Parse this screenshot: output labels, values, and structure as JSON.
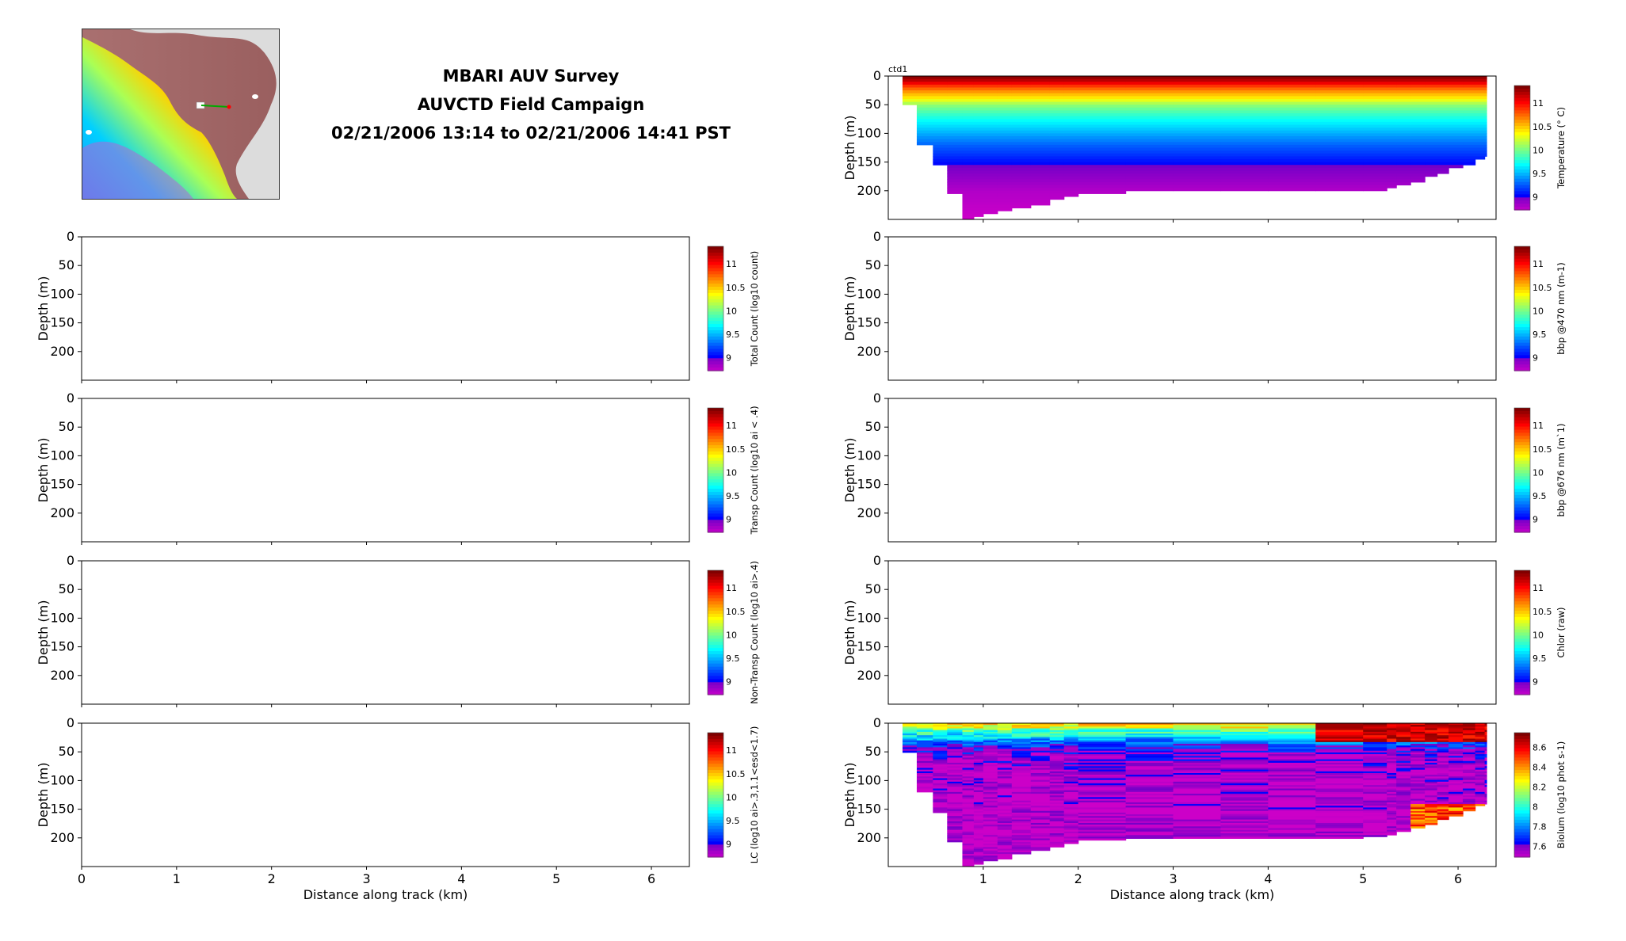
{
  "header": {
    "title_line1": "MBARI AUV Survey",
    "title_line2": "AUVCTD Field Campaign",
    "title_line3": "02/21/2006 13:14 to 02/21/2006 14:41 PST"
  },
  "map": {
    "description_icon": "location-map-icon"
  },
  "chart_data": [
    {
      "id": "total-count",
      "type": "heatmap",
      "column": "left",
      "row": 0,
      "ylabel": "Depth (m)",
      "yticks": [
        0,
        50,
        100,
        150,
        200
      ],
      "ylim": [
        250,
        0
      ],
      "xlim": [
        0,
        6.4
      ],
      "xticks": [
        0,
        1,
        2,
        3,
        4,
        5,
        6
      ],
      "xticklabels": [],
      "colorbar": {
        "label": "Total Count (log10 count)",
        "ticks": [
          "9",
          "9.5",
          "10",
          "10.5",
          "11"
        ],
        "cmap": "jet"
      },
      "data": "empty"
    },
    {
      "id": "transp-count",
      "type": "heatmap",
      "column": "left",
      "row": 1,
      "ylabel": "Depth (m)",
      "yticks": [
        0,
        50,
        100,
        150,
        200
      ],
      "ylim": [
        250,
        0
      ],
      "xlim": [
        0,
        6.4
      ],
      "xticks": [
        0,
        1,
        2,
        3,
        4,
        5,
        6
      ],
      "xticklabels": [],
      "colorbar": {
        "label": "Transp Count (log10 ai < .4)",
        "ticks": [
          "9",
          "9.5",
          "10",
          "10.5",
          "11"
        ],
        "cmap": "jet"
      },
      "data": "empty"
    },
    {
      "id": "nontransp-count",
      "type": "heatmap",
      "column": "left",
      "row": 2,
      "ylabel": "Depth (m)",
      "yticks": [
        0,
        50,
        100,
        150,
        200
      ],
      "ylim": [
        250,
        0
      ],
      "xlim": [
        0,
        6.4
      ],
      "xticks": [
        0,
        1,
        2,
        3,
        4,
        5,
        6
      ],
      "xticklabels": [],
      "colorbar": {
        "label": "Non-Transp Count (log10 ai>.4)",
        "ticks": [
          "9",
          "9.5",
          "10",
          "10.5",
          "11"
        ],
        "cmap": "jet"
      },
      "data": "empty"
    },
    {
      "id": "lc",
      "type": "heatmap",
      "column": "left",
      "row": 3,
      "ylabel": "Depth (m)",
      "yticks": [
        0,
        50,
        100,
        150,
        200
      ],
      "ylim": [
        250,
        0
      ],
      "xlim": [
        0,
        6.4
      ],
      "xticks": [
        0,
        1,
        2,
        3,
        4,
        5,
        6
      ],
      "xticklabels": [
        "0",
        "1",
        "2",
        "3",
        "4",
        "5",
        "6"
      ],
      "xlabel": "Distance along track (km)",
      "colorbar": {
        "label": "LC (log10 ai>.3,1.1<esd<1.7)",
        "ticks": [
          "9",
          "9.5",
          "10",
          "10.5",
          "11"
        ],
        "cmap": "jet"
      },
      "data": "empty"
    },
    {
      "id": "temperature",
      "type": "heatmap",
      "column": "right",
      "row": -1,
      "annotation": "ctd1",
      "ylabel": "Depth (m)",
      "yticks": [
        0,
        50,
        100,
        150,
        200
      ],
      "ylim": [
        250,
        0
      ],
      "xlim": [
        0,
        6.4
      ],
      "xticks": [
        1,
        2,
        3,
        4,
        5,
        6
      ],
      "xticklabels": [],
      "colorbar": {
        "label": "Temperature (° C)",
        "ticks": [
          "9",
          "9.5",
          "10",
          "10.5",
          "11"
        ],
        "range": [
          8.7,
          11.4
        ],
        "cmap": "jet"
      },
      "profiles": [
        {
          "x": 0.15,
          "max_depth": 50
        },
        {
          "x": 0.3,
          "max_depth": 120
        },
        {
          "x": 0.47,
          "max_depth": 155
        },
        {
          "x": 0.62,
          "max_depth": 205
        },
        {
          "x": 0.78,
          "max_depth": 248
        },
        {
          "x": 0.9,
          "max_depth": 245
        },
        {
          "x": 1.0,
          "max_depth": 240
        },
        {
          "x": 1.15,
          "max_depth": 235
        },
        {
          "x": 1.3,
          "max_depth": 228
        },
        {
          "x": 1.5,
          "max_depth": 222
        },
        {
          "x": 1.7,
          "max_depth": 215
        },
        {
          "x": 1.85,
          "max_depth": 208
        },
        {
          "x": 2.0,
          "max_depth": 203
        },
        {
          "x": 2.5,
          "max_depth": 200
        },
        {
          "x": 3.0,
          "max_depth": 200
        },
        {
          "x": 3.5,
          "max_depth": 200
        },
        {
          "x": 4.0,
          "max_depth": 200
        },
        {
          "x": 4.5,
          "max_depth": 200
        },
        {
          "x": 5.0,
          "max_depth": 198
        },
        {
          "x": 5.25,
          "max_depth": 195
        },
        {
          "x": 5.35,
          "max_depth": 188
        },
        {
          "x": 5.5,
          "max_depth": 182
        },
        {
          "x": 5.65,
          "max_depth": 175
        },
        {
          "x": 5.78,
          "max_depth": 168
        },
        {
          "x": 5.9,
          "max_depth": 160
        },
        {
          "x": 6.05,
          "max_depth": 152
        },
        {
          "x": 6.18,
          "max_depth": 143
        },
        {
          "x": 6.28,
          "max_depth": 140
        }
      ],
      "temperature_profile": [
        {
          "depth": 0,
          "value": 11.4
        },
        {
          "depth": 5,
          "value": 11.3
        },
        {
          "depth": 10,
          "value": 11.2
        },
        {
          "depth": 15,
          "value": 11.0
        },
        {
          "depth": 22,
          "value": 10.8
        },
        {
          "depth": 30,
          "value": 10.6
        },
        {
          "depth": 40,
          "value": 10.4
        },
        {
          "depth": 50,
          "value": 10.1
        },
        {
          "depth": 60,
          "value": 9.95
        },
        {
          "depth": 75,
          "value": 9.75
        },
        {
          "depth": 90,
          "value": 9.6
        },
        {
          "depth": 105,
          "value": 9.45
        },
        {
          "depth": 120,
          "value": 9.3
        },
        {
          "depth": 140,
          "value": 9.15
        },
        {
          "depth": 160,
          "value": 9.0
        },
        {
          "depth": 180,
          "value": 8.9
        },
        {
          "depth": 200,
          "value": 8.8
        },
        {
          "depth": 250,
          "value": 8.7
        }
      ]
    },
    {
      "id": "bbp470",
      "type": "heatmap",
      "column": "right",
      "row": 0,
      "ylabel": "Depth (m)",
      "yticks": [
        0,
        50,
        100,
        150,
        200
      ],
      "ylim": [
        250,
        0
      ],
      "xlim": [
        0,
        6.4
      ],
      "xticks": [
        1,
        2,
        3,
        4,
        5,
        6
      ],
      "xticklabels": [],
      "colorbar": {
        "label": "bbp @470 nm (m-1)",
        "ticks": [
          "9",
          "9.5",
          "10",
          "10.5",
          "11"
        ],
        "cmap": "jet"
      },
      "data": "empty"
    },
    {
      "id": "bbp676",
      "type": "heatmap",
      "column": "right",
      "row": 1,
      "ylabel": "Depth (m)",
      "yticks": [
        0,
        50,
        100,
        150,
        200
      ],
      "ylim": [
        250,
        0
      ],
      "xlim": [
        0,
        6.4
      ],
      "xticks": [
        1,
        2,
        3,
        4,
        5,
        6
      ],
      "xticklabels": [],
      "colorbar": {
        "label": "bbp @676 nm (m`1)",
        "ticks": [
          "9",
          "9.5",
          "10",
          "10.5",
          "11"
        ],
        "cmap": "jet"
      },
      "data": "empty"
    },
    {
      "id": "chlor",
      "type": "heatmap",
      "column": "right",
      "row": 2,
      "ylabel": "Depth (m)",
      "yticks": [
        0,
        50,
        100,
        150,
        200
      ],
      "ylim": [
        250,
        0
      ],
      "xlim": [
        0,
        6.4
      ],
      "xticks": [
        1,
        2,
        3,
        4,
        5,
        6
      ],
      "xticklabels": [],
      "colorbar": {
        "label": "Chlor (raw)",
        "ticks": [
          "9",
          "9.5",
          "10",
          "10.5",
          "11"
        ],
        "cmap": "jet"
      },
      "data": "empty"
    },
    {
      "id": "biolum",
      "type": "heatmap",
      "column": "right",
      "row": 3,
      "ylabel": "Depth (m)",
      "yticks": [
        0,
        50,
        100,
        150,
        200
      ],
      "ylim": [
        250,
        0
      ],
      "xlim": [
        0,
        6.4
      ],
      "xticks": [
        1,
        2,
        3,
        4,
        5,
        6
      ],
      "xticklabels": [
        "1",
        "2",
        "3",
        "4",
        "5",
        "6"
      ],
      "xlabel": "Distance along track (km)",
      "colorbar": {
        "label": "Biolum (log10 phot s-1)",
        "ticks": [
          "7.6",
          "7.8",
          "8",
          "8.2",
          "8.4",
          "8.6"
        ],
        "range": [
          7.5,
          8.7
        ],
        "cmap": "jet"
      },
      "biolum_profile": [
        {
          "depth": 0,
          "value": 8.3
        },
        {
          "depth": 8,
          "value": 8.2
        },
        {
          "depth": 15,
          "value": 8.0
        },
        {
          "depth": 25,
          "value": 7.9
        },
        {
          "depth": 35,
          "value": 7.75
        },
        {
          "depth": 50,
          "value": 7.6
        },
        {
          "depth": 80,
          "value": 7.55
        },
        {
          "depth": 250,
          "value": 7.5
        }
      ],
      "hotspot": {
        "x_range": [
          4.3,
          6.3
        ],
        "depth_range": [
          0,
          30
        ],
        "value": 8.7
      },
      "deep_hotspot": {
        "x_range": [
          5.4,
          6.2
        ],
        "depth_range": [
          140,
          180
        ],
        "value": 8.6
      }
    }
  ]
}
